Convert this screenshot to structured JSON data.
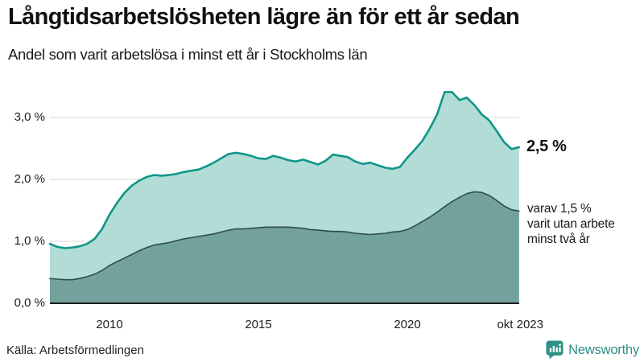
{
  "header": {
    "title": "Långtidsarbetslösheten lägre än för ett år sedan",
    "subtitle": "Andel som varit arbetslösa i minst ett år i Stockholms län"
  },
  "chart_data": {
    "type": "area",
    "title": "Långtidsarbetslösheten lägre än för ett år sedan",
    "subtitle": "Andel som varit arbetslösa i minst ett år i Stockholms län",
    "y_unit": "%",
    "x_start": 2008.0,
    "x_step": 0.25,
    "x_range_label": "2008 – okt 2023",
    "ylim": [
      0,
      3.7
    ],
    "grid": "horizontal",
    "legend_position": "none",
    "x_ticks": [
      {
        "label": "2010",
        "year": 2010
      },
      {
        "label": "2015",
        "year": 2015
      },
      {
        "label": "2020",
        "year": 2020
      },
      {
        "label": "okt 2023",
        "year": 2023.79
      }
    ],
    "y_ticks": [
      {
        "label": "0,0 %",
        "value": 0
      },
      {
        "label": "1,0 %",
        "value": 1
      },
      {
        "label": "2,0 %",
        "value": 2
      },
      {
        "label": "3,0 %",
        "value": 3
      }
    ],
    "series": [
      {
        "name": "Andel arbetslösa minst ett år",
        "latest_label": "2,5 %",
        "latest_value": 2.5,
        "values": [
          0.96,
          0.91,
          0.89,
          0.9,
          0.92,
          0.96,
          1.04,
          1.2,
          1.43,
          1.62,
          1.78,
          1.9,
          1.98,
          2.04,
          2.07,
          2.06,
          2.07,
          2.09,
          2.12,
          2.14,
          2.16,
          2.21,
          2.27,
          2.34,
          2.41,
          2.43,
          2.41,
          2.38,
          2.34,
          2.33,
          2.38,
          2.35,
          2.31,
          2.29,
          2.32,
          2.28,
          2.24,
          2.3,
          2.4,
          2.38,
          2.36,
          2.29,
          2.25,
          2.27,
          2.23,
          2.19,
          2.17,
          2.2,
          2.35,
          2.48,
          2.62,
          2.82,
          3.05,
          3.41,
          3.41,
          3.28,
          3.32,
          3.2,
          3.05,
          2.95,
          2.78,
          2.6,
          2.49,
          2.52
        ]
      },
      {
        "name": "varav utan arbete minst två år",
        "latest_label": "1,5 %",
        "latest_value": 1.5,
        "values": [
          0.4,
          0.39,
          0.38,
          0.38,
          0.4,
          0.43,
          0.47,
          0.53,
          0.61,
          0.67,
          0.73,
          0.79,
          0.85,
          0.9,
          0.94,
          0.96,
          0.98,
          1.01,
          1.04,
          1.06,
          1.08,
          1.1,
          1.12,
          1.15,
          1.18,
          1.2,
          1.2,
          1.21,
          1.22,
          1.23,
          1.23,
          1.23,
          1.23,
          1.22,
          1.21,
          1.19,
          1.18,
          1.17,
          1.16,
          1.16,
          1.15,
          1.13,
          1.12,
          1.11,
          1.12,
          1.13,
          1.15,
          1.16,
          1.19,
          1.25,
          1.32,
          1.39,
          1.47,
          1.56,
          1.64,
          1.71,
          1.77,
          1.8,
          1.79,
          1.74,
          1.66,
          1.57,
          1.51,
          1.49
        ]
      }
    ]
  },
  "annotations": {
    "total_label": "2,5 %",
    "subset_lines": [
      "varav 1,5 %",
      "varit utan arbete",
      "minst två år"
    ]
  },
  "footer": {
    "source": "Källa: Arbetsförmedlingen",
    "brand": "Newsworthy"
  },
  "colors": {
    "series1_fill": "#b2dcd6",
    "series1_stroke": "#0f9688",
    "series2_fill": "#73a29c",
    "series2_stroke": "#2e4e49",
    "grid": "#d9d9d9",
    "baseline": "#1d1d1b",
    "text": "#1a1a1a",
    "brand": "#2e9086"
  }
}
